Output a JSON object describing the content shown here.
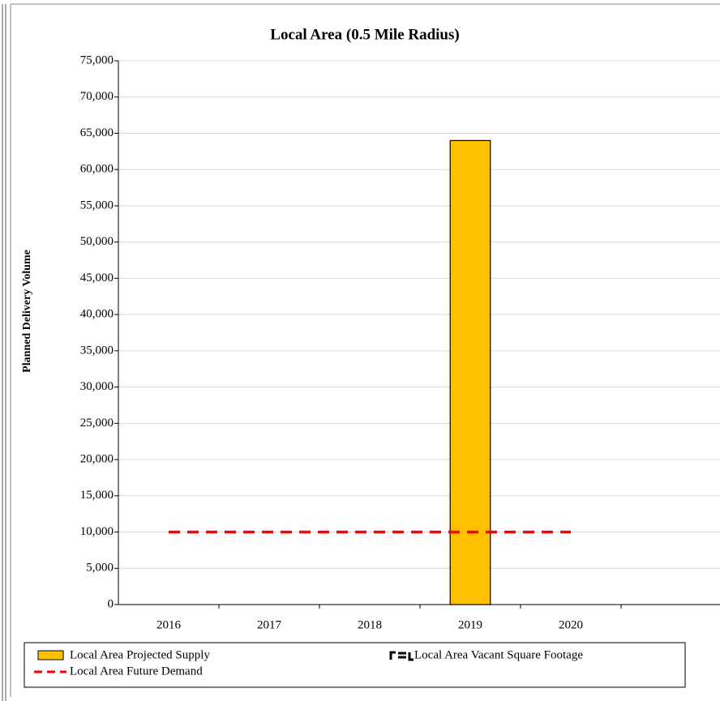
{
  "chart_data": {
    "type": "bar",
    "title": "Local Area (0.5 Mile Radius)",
    "y_label": "Planned Delivery Volume",
    "categories": [
      "2016",
      "2017",
      "2018",
      "2019",
      "2020",
      null
    ],
    "series": [
      {
        "name": "Local Area Projected Supply",
        "type": "bar",
        "color": "#ffc000",
        "values": [
          null,
          null,
          null,
          64000,
          null,
          null
        ]
      },
      {
        "name": "Local Area Vacant Square Footage",
        "type": "line",
        "color": "#000000",
        "values": [
          null,
          null,
          null,
          null,
          null,
          null
        ]
      },
      {
        "name": "Local Area Future Demand",
        "type": "line",
        "color": "#ff0000",
        "values": [
          10000,
          10000,
          10000,
          10000,
          10000,
          null
        ]
      }
    ],
    "ylim": [
      0,
      75000
    ],
    "yticks": [
      0,
      {
        "value": 5000,
        "label": "5,000"
      },
      {
        "value": 10000,
        "label": "10,000"
      },
      {
        "value": 15000,
        "label": "15,000"
      },
      {
        "value": 20000,
        "label": "20,000"
      },
      {
        "value": 25000,
        "label": "25,000"
      },
      {
        "value": 30000,
        "label": "30,000"
      },
      {
        "value": 35000,
        "label": "35,000"
      },
      {
        "value": 40000,
        "label": "40,000"
      },
      {
        "value": 45000,
        "label": "45,000"
      },
      {
        "value": 50000,
        "label": "50,000"
      },
      {
        "value": 55000,
        "label": "55,000"
      },
      {
        "value": 60000,
        "label": "60,000"
      },
      {
        "value": 65000,
        "label": "65,000"
      },
      {
        "value": 70000,
        "label": "70,000"
      },
      {
        "value": 75000,
        "label": "75,000"
      }
    ],
    "grid": true
  }
}
